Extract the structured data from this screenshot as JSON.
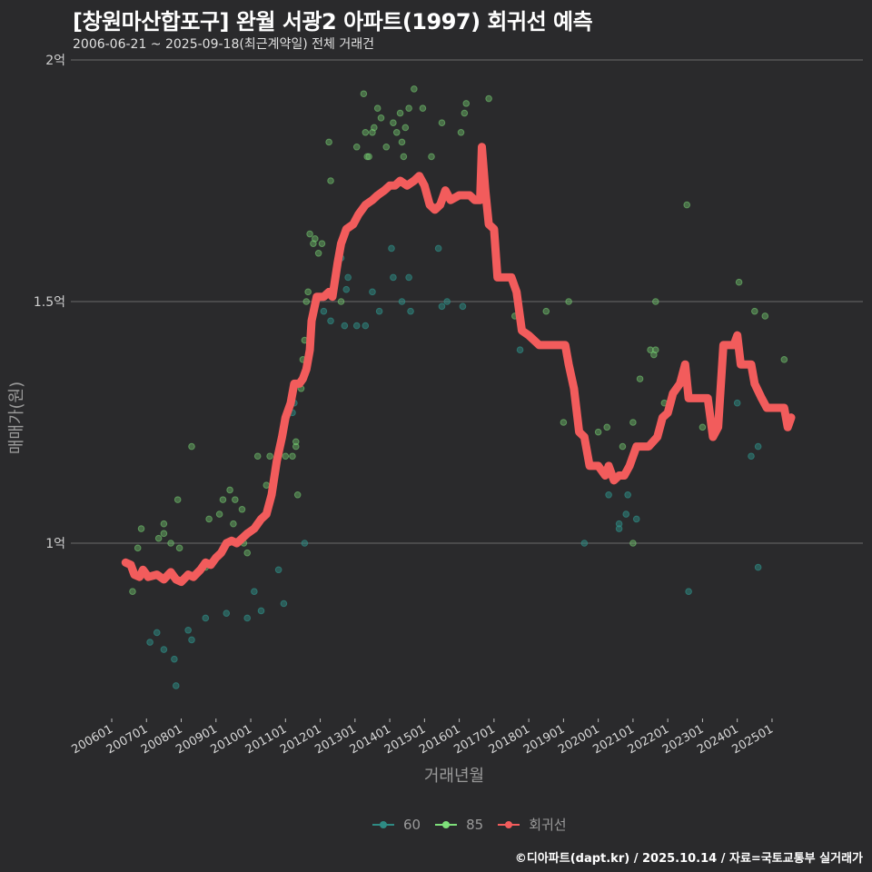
{
  "header": {
    "title": "[창원마산합포구] 완월 서광2 아파트(1997) 회귀선 예측",
    "subtitle": "2006-06-21 ~ 2025-09-18(최근계약일) 전체 거래건"
  },
  "axes": {
    "ylabel": "매매가(원)",
    "xlabel": "거래년월"
  },
  "legend": [
    {
      "label": "60",
      "color": "#2e8b84"
    },
    {
      "label": "85",
      "color": "#7ee07a"
    },
    {
      "label": "회귀선",
      "color": "#f25c5c"
    }
  ],
  "footer": "©디아파트(dapt.kr) / 2025.10.14 / 자료=국토교통부 실거래가",
  "colors": {
    "background": "#2a2a2c",
    "grid": "#6a6a6a",
    "series_60": "#2e8b84",
    "series_85": "#7ee07a",
    "regression": "#f25c5c"
  },
  "chart_data": {
    "type": "scatter",
    "title": "[창원마산합포구] 완월 서광2 아파트(1997) 회귀선 예측",
    "subtitle": "2006-06-21 ~ 2025-09-18(최근계약일) 전체 거래건",
    "xlabel": "거래년월",
    "ylabel": "매매가(원)",
    "x_ticks": [
      "200601",
      "200701",
      "200801",
      "200901",
      "201001",
      "201101",
      "201201",
      "201301",
      "201401",
      "201501",
      "201601",
      "201701",
      "201801",
      "201901",
      "202001",
      "202101",
      "202201",
      "202301",
      "202401",
      "202501"
    ],
    "y_ticks": [
      {
        "value": 100000000,
        "label": "1억"
      },
      {
        "value": 150000000,
        "label": "1.5억"
      },
      {
        "value": 200000000,
        "label": "2억"
      }
    ],
    "ylim": [
      62000000,
      202000000
    ],
    "xlim": [
      2005.75,
      2025.95
    ],
    "grid": true,
    "legend_position": "bottom",
    "series": [
      {
        "name": "60",
        "type": "scatter",
        "points": [
          [
            2007.1,
            0.795
          ],
          [
            2007.3,
            0.815
          ],
          [
            2007.5,
            0.78
          ],
          [
            2007.8,
            0.76
          ],
          [
            2007.85,
            0.705
          ],
          [
            2008.2,
            0.82
          ],
          [
            2008.3,
            0.8
          ],
          [
            2008.7,
            0.845
          ],
          [
            2009.3,
            0.855
          ],
          [
            2009.9,
            0.845
          ],
          [
            2010.1,
            0.9
          ],
          [
            2010.3,
            0.86
          ],
          [
            2010.8,
            0.945
          ],
          [
            2010.95,
            0.875
          ],
          [
            2011.2,
            1.27
          ],
          [
            2011.25,
            1.29
          ],
          [
            2011.55,
            1.0
          ],
          [
            2012.1,
            1.48
          ],
          [
            2012.3,
            1.46
          ],
          [
            2012.6,
            1.59
          ],
          [
            2012.7,
            1.45
          ],
          [
            2012.75,
            1.525
          ],
          [
            2012.8,
            1.55
          ],
          [
            2013.05,
            1.45
          ],
          [
            2013.3,
            1.45
          ],
          [
            2013.5,
            1.52
          ],
          [
            2013.7,
            1.48
          ],
          [
            2014.05,
            1.61
          ],
          [
            2014.1,
            1.55
          ],
          [
            2014.35,
            1.5
          ],
          [
            2014.55,
            1.55
          ],
          [
            2014.6,
            1.48
          ],
          [
            2015.4,
            1.61
          ],
          [
            2015.5,
            1.49
          ],
          [
            2015.65,
            1.5
          ],
          [
            2016.1,
            1.49
          ],
          [
            2017.75,
            1.4
          ],
          [
            2019.6,
            1.0
          ],
          [
            2020.3,
            1.1
          ],
          [
            2020.6,
            1.04
          ],
          [
            2020.6,
            1.03
          ],
          [
            2020.8,
            1.06
          ],
          [
            2020.85,
            1.1
          ],
          [
            2021.1,
            1.05
          ],
          [
            2022.6,
            0.9
          ],
          [
            2024.0,
            1.29
          ],
          [
            2024.4,
            1.18
          ],
          [
            2024.6,
            1.2
          ],
          [
            2024.6,
            0.95
          ]
        ]
      },
      {
        "name": "85",
        "type": "scatter",
        "points": [
          [
            2006.6,
            0.9
          ],
          [
            2006.75,
            0.99
          ],
          [
            2006.85,
            1.03
          ],
          [
            2007.35,
            1.01
          ],
          [
            2007.5,
            1.04
          ],
          [
            2007.5,
            1.02
          ],
          [
            2007.7,
            1.0
          ],
          [
            2007.9,
            1.09
          ],
          [
            2007.95,
            0.99
          ],
          [
            2008.3,
            1.2
          ],
          [
            2008.7,
            0.95
          ],
          [
            2008.8,
            1.05
          ],
          [
            2009.1,
            1.06
          ],
          [
            2009.2,
            1.09
          ],
          [
            2009.4,
            1.11
          ],
          [
            2009.5,
            1.04
          ],
          [
            2009.55,
            1.09
          ],
          [
            2009.75,
            1.07
          ],
          [
            2009.8,
            1.0
          ],
          [
            2009.9,
            0.98
          ],
          [
            2010.2,
            1.18
          ],
          [
            2010.45,
            1.12
          ],
          [
            2010.55,
            1.18
          ],
          [
            2011.0,
            1.18
          ],
          [
            2011.2,
            1.18
          ],
          [
            2011.3,
            1.2
          ],
          [
            2011.35,
            1.1
          ],
          [
            2011.3,
            1.21
          ],
          [
            2011.45,
            1.32
          ],
          [
            2011.5,
            1.38
          ],
          [
            2011.55,
            1.42
          ],
          [
            2011.6,
            1.5
          ],
          [
            2011.65,
            1.52
          ],
          [
            2011.7,
            1.64
          ],
          [
            2011.8,
            1.62
          ],
          [
            2011.85,
            1.63
          ],
          [
            2011.95,
            1.6
          ],
          [
            2012.05,
            1.62
          ],
          [
            2012.25,
            1.83
          ],
          [
            2012.3,
            1.75
          ],
          [
            2012.6,
            1.5
          ],
          [
            2013.05,
            1.82
          ],
          [
            2013.25,
            1.93
          ],
          [
            2013.3,
            1.85
          ],
          [
            2013.35,
            1.8
          ],
          [
            2013.4,
            1.8
          ],
          [
            2013.5,
            1.85
          ],
          [
            2013.55,
            1.86
          ],
          [
            2013.65,
            1.9
          ],
          [
            2013.75,
            1.88
          ],
          [
            2013.9,
            1.82
          ],
          [
            2014.1,
            1.87
          ],
          [
            2014.2,
            1.85
          ],
          [
            2014.3,
            1.89
          ],
          [
            2014.35,
            1.83
          ],
          [
            2014.4,
            1.8
          ],
          [
            2014.45,
            1.86
          ],
          [
            2014.55,
            1.9
          ],
          [
            2014.7,
            1.94
          ],
          [
            2014.95,
            1.9
          ],
          [
            2015.2,
            1.8
          ],
          [
            2015.5,
            1.87
          ],
          [
            2016.05,
            1.85
          ],
          [
            2016.15,
            1.89
          ],
          [
            2016.2,
            1.91
          ],
          [
            2016.85,
            1.92
          ],
          [
            2017.6,
            1.47
          ],
          [
            2018.5,
            1.48
          ],
          [
            2019.15,
            1.5
          ],
          [
            2019.0,
            1.25
          ],
          [
            2020.0,
            1.23
          ],
          [
            2020.25,
            1.24
          ],
          [
            2020.7,
            1.2
          ],
          [
            2021.0,
            1.25
          ],
          [
            2021.2,
            1.34
          ],
          [
            2021.5,
            1.4
          ],
          [
            2021.6,
            1.39
          ],
          [
            2021.65,
            1.4
          ],
          [
            2021.65,
            1.5
          ],
          [
            2021.9,
            1.29
          ],
          [
            2022.55,
            1.7
          ],
          [
            2023.0,
            1.24
          ],
          [
            2024.05,
            1.54
          ],
          [
            2024.5,
            1.48
          ],
          [
            2024.8,
            1.47
          ],
          [
            2025.35,
            1.38
          ],
          [
            2021.0,
            1.0
          ]
        ]
      },
      {
        "name": "회귀선",
        "type": "line",
        "points": [
          [
            2006.4,
            0.96
          ],
          [
            2006.55,
            0.955
          ],
          [
            2006.65,
            0.935
          ],
          [
            2006.8,
            0.93
          ],
          [
            2006.9,
            0.945
          ],
          [
            2007.05,
            0.93
          ],
          [
            2007.3,
            0.935
          ],
          [
            2007.5,
            0.925
          ],
          [
            2007.7,
            0.94
          ],
          [
            2007.85,
            0.925
          ],
          [
            2008.0,
            0.92
          ],
          [
            2008.2,
            0.935
          ],
          [
            2008.35,
            0.93
          ],
          [
            2008.55,
            0.945
          ],
          [
            2008.7,
            0.96
          ],
          [
            2008.85,
            0.955
          ],
          [
            2009.0,
            0.97
          ],
          [
            2009.15,
            0.98
          ],
          [
            2009.3,
            1.0
          ],
          [
            2009.45,
            1.005
          ],
          [
            2009.6,
            1.0
          ],
          [
            2009.75,
            1.01
          ],
          [
            2009.9,
            1.02
          ],
          [
            2010.1,
            1.03
          ],
          [
            2010.3,
            1.05
          ],
          [
            2010.45,
            1.06
          ],
          [
            2010.6,
            1.1
          ],
          [
            2010.75,
            1.17
          ],
          [
            2010.9,
            1.22
          ],
          [
            2011.0,
            1.26
          ],
          [
            2011.15,
            1.29
          ],
          [
            2011.25,
            1.33
          ],
          [
            2011.4,
            1.33
          ],
          [
            2011.5,
            1.34
          ],
          [
            2011.6,
            1.36
          ],
          [
            2011.7,
            1.4
          ],
          [
            2011.75,
            1.46
          ],
          [
            2011.9,
            1.51
          ],
          [
            2012.1,
            1.51
          ],
          [
            2012.25,
            1.52
          ],
          [
            2012.35,
            1.51
          ],
          [
            2012.5,
            1.58
          ],
          [
            2012.6,
            1.62
          ],
          [
            2012.75,
            1.65
          ],
          [
            2012.95,
            1.66
          ],
          [
            2013.1,
            1.68
          ],
          [
            2013.3,
            1.7
          ],
          [
            2013.5,
            1.71
          ],
          [
            2013.65,
            1.72
          ],
          [
            2013.85,
            1.73
          ],
          [
            2014.0,
            1.74
          ],
          [
            2014.15,
            1.74
          ],
          [
            2014.3,
            1.75
          ],
          [
            2014.5,
            1.74
          ],
          [
            2014.7,
            1.75
          ],
          [
            2014.85,
            1.76
          ],
          [
            2015.0,
            1.74
          ],
          [
            2015.15,
            1.7
          ],
          [
            2015.3,
            1.69
          ],
          [
            2015.45,
            1.7
          ],
          [
            2015.6,
            1.73
          ],
          [
            2015.75,
            1.71
          ],
          [
            2016.0,
            1.72
          ],
          [
            2016.3,
            1.72
          ],
          [
            2016.45,
            1.71
          ],
          [
            2016.6,
            1.71
          ],
          [
            2016.65,
            1.82
          ],
          [
            2016.75,
            1.73
          ],
          [
            2016.85,
            1.66
          ],
          [
            2017.0,
            1.65
          ],
          [
            2017.1,
            1.55
          ],
          [
            2017.5,
            1.55
          ],
          [
            2017.65,
            1.52
          ],
          [
            2017.8,
            1.44
          ],
          [
            2018.0,
            1.43
          ],
          [
            2018.15,
            1.42
          ],
          [
            2018.3,
            1.41
          ],
          [
            2018.5,
            1.41
          ],
          [
            2018.8,
            1.41
          ],
          [
            2019.05,
            1.41
          ],
          [
            2019.15,
            1.37
          ],
          [
            2019.3,
            1.32
          ],
          [
            2019.45,
            1.23
          ],
          [
            2019.6,
            1.22
          ],
          [
            2019.75,
            1.16
          ],
          [
            2020.0,
            1.16
          ],
          [
            2020.2,
            1.14
          ],
          [
            2020.3,
            1.16
          ],
          [
            2020.45,
            1.13
          ],
          [
            2020.6,
            1.14
          ],
          [
            2020.75,
            1.14
          ],
          [
            2020.9,
            1.16
          ],
          [
            2021.1,
            1.2
          ],
          [
            2021.45,
            1.2
          ],
          [
            2021.7,
            1.22
          ],
          [
            2021.85,
            1.26
          ],
          [
            2022.0,
            1.27
          ],
          [
            2022.15,
            1.31
          ],
          [
            2022.35,
            1.33
          ],
          [
            2022.5,
            1.37
          ],
          [
            2022.6,
            1.3
          ],
          [
            2023.0,
            1.3
          ],
          [
            2023.15,
            1.3
          ],
          [
            2023.3,
            1.22
          ],
          [
            2023.45,
            1.24
          ],
          [
            2023.6,
            1.41
          ],
          [
            2023.9,
            1.41
          ],
          [
            2024.0,
            1.43
          ],
          [
            2024.1,
            1.37
          ],
          [
            2024.4,
            1.37
          ],
          [
            2024.5,
            1.33
          ],
          [
            2024.7,
            1.3
          ],
          [
            2024.85,
            1.28
          ],
          [
            2025.35,
            1.28
          ],
          [
            2025.45,
            1.24
          ],
          [
            2025.55,
            1.26
          ]
        ]
      }
    ]
  }
}
